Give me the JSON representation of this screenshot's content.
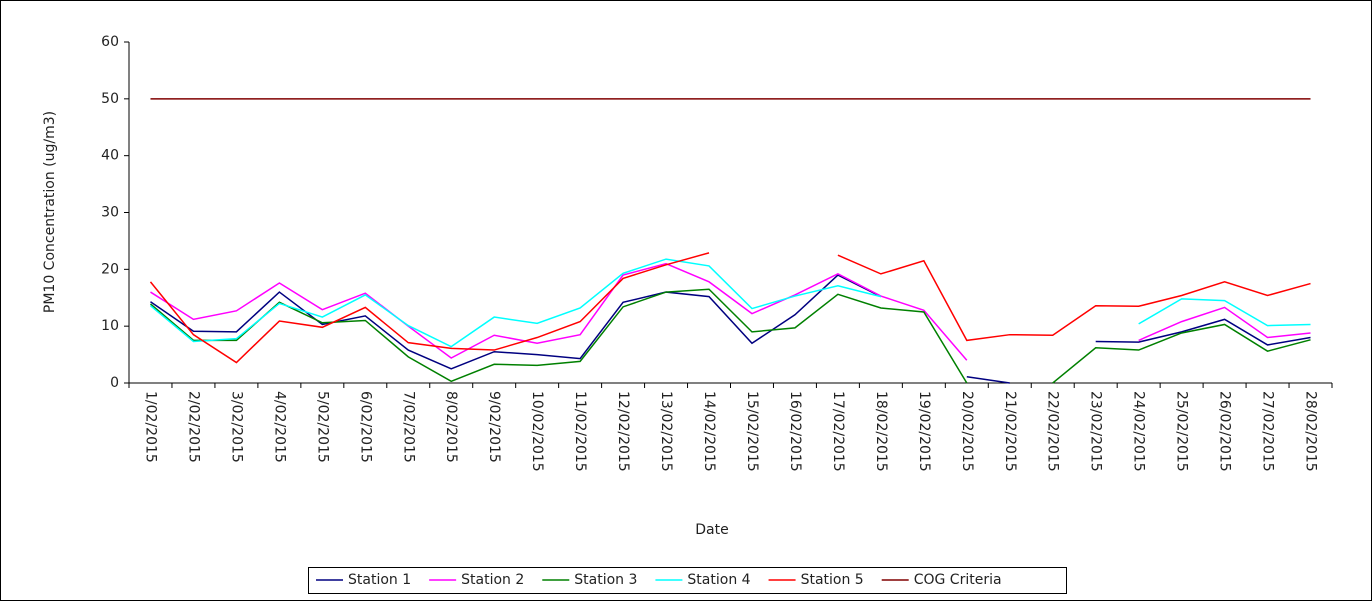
{
  "chart_data": {
    "type": "line",
    "y_label": "PM10 Concentration (ug/m3)",
    "x_label": "Date",
    "categories": [
      "1/02/2015",
      "2/02/2015",
      "3/02/2015",
      "4/02/2015",
      "5/02/2015",
      "6/02/2015",
      "7/02/2015",
      "8/02/2015",
      "9/02/2015",
      "10/02/2015",
      "11/02/2015",
      "12/02/2015",
      "13/02/2015",
      "14/02/2015",
      "15/02/2015",
      "16/02/2015",
      "17/02/2015",
      "18/02/2015",
      "19/02/2015",
      "20/02/2015",
      "21/02/2015",
      "22/02/2015",
      "23/02/2015",
      "24/02/2015",
      "25/02/2015",
      "26/02/2015",
      "27/02/2015",
      "28/02/2015"
    ],
    "series": [
      {
        "name": "Station 1",
        "color": "#000080",
        "values": [
          14.3,
          9.1,
          9.0,
          16.0,
          10.3,
          11.8,
          5.8,
          2.5,
          5.5,
          5.0,
          4.3,
          14.2,
          16.0,
          15.2,
          7.0,
          12.0,
          19.0,
          15.2,
          null,
          1.1,
          0,
          null,
          7.3,
          7.2,
          9.0,
          11.2,
          6.7,
          8.0
        ]
      },
      {
        "name": "Station 2",
        "color": "#ff00ff",
        "values": [
          16.0,
          11.2,
          12.7,
          17.6,
          12.9,
          15.8,
          10.0,
          4.4,
          8.4,
          7.0,
          8.5,
          19.0,
          21.0,
          17.8,
          12.2,
          15.5,
          19.2,
          15.3,
          12.8,
          4.0,
          null,
          null,
          null,
          7.5,
          10.8,
          13.3,
          8.0,
          8.8
        ]
      },
      {
        "name": "Station 3",
        "color": "#008000",
        "values": [
          13.9,
          7.5,
          7.5,
          14.2,
          10.6,
          11.0,
          4.6,
          0.3,
          3.3,
          3.1,
          3.8,
          13.4,
          16.0,
          16.5,
          9.0,
          9.7,
          15.6,
          13.2,
          12.5,
          0,
          null,
          0,
          6.2,
          5.8,
          8.8,
          10.3,
          5.6,
          7.6
        ]
      },
      {
        "name": "Station 4",
        "color": "#00ffff",
        "values": [
          13.6,
          7.3,
          7.8,
          14.0,
          11.6,
          15.5,
          10.1,
          6.4,
          11.6,
          10.5,
          13.2,
          19.3,
          21.8,
          20.6,
          13.1,
          15.3,
          17.1,
          15.2,
          null,
          null,
          null,
          null,
          null,
          10.4,
          14.8,
          14.5,
          10.1,
          10.3
        ]
      },
      {
        "name": "Station 5",
        "color": "#ff0000",
        "values": [
          17.8,
          8.5,
          3.6,
          10.9,
          9.8,
          13.3,
          7.1,
          6.1,
          5.8,
          8.0,
          10.8,
          18.4,
          20.8,
          22.9,
          null,
          null,
          22.5,
          19.2,
          21.5,
          7.5,
          8.5,
          8.4,
          13.6,
          13.5,
          15.4,
          17.8,
          15.4,
          17.5
        ]
      },
      {
        "name": "COG Criteria",
        "color": "#800000",
        "values": [
          50,
          50,
          50,
          50,
          50,
          50,
          50,
          50,
          50,
          50,
          50,
          50,
          50,
          50,
          50,
          50,
          50,
          50,
          50,
          50,
          50,
          50,
          50,
          50,
          50,
          50,
          50,
          50
        ]
      }
    ],
    "ylim": [
      0,
      60
    ],
    "yticks": [
      0,
      10,
      20,
      30,
      40,
      50,
      60
    ],
    "legend": "bottom"
  }
}
